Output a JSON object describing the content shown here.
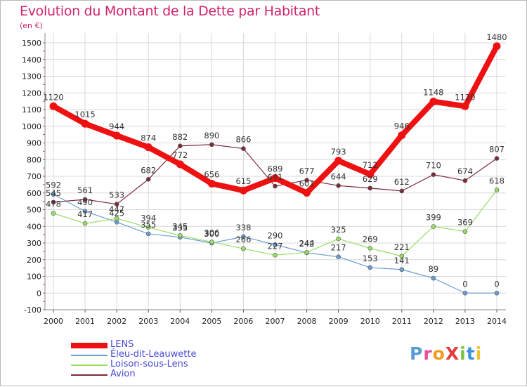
{
  "title": "Evolution du Montant de la Dette par Habitant",
  "unit": "(en €)",
  "logo": {
    "text": "ProXiti",
    "colors": [
      "#5b9bd5",
      "#e84e9a",
      "#f39b1c",
      "#e23d3d",
      "#7ac142",
      "#3d8fe2",
      "#f2c230"
    ]
  },
  "chart_data": {
    "type": "line",
    "title": "Evolution du Montant de la Dette par Habitant",
    "ylabel": "(en €)",
    "xlabel": "",
    "ylim": [
      -100,
      1500
    ],
    "yticks": [
      -100,
      0,
      100,
      200,
      300,
      400,
      500,
      600,
      700,
      800,
      900,
      1000,
      1100,
      1200,
      1300,
      1400,
      1500
    ],
    "x": [
      "2000",
      "2001",
      "2002",
      "2003",
      "2004",
      "2005",
      "2006",
      "2007",
      "2008",
      "2009",
      "2010",
      "2011",
      "2012",
      "2013",
      "2014"
    ],
    "grid": true,
    "legend_position": "bottom-left",
    "series": [
      {
        "name": "LENS",
        "color": "#ee1111",
        "width": 8,
        "values": [
          1120,
          1015,
          944,
          874,
          772,
          656,
          615,
          689,
          601,
          793,
          712,
          946,
          1148,
          1120,
          1480
        ],
        "labels": [
          "1120",
          "1015",
          "944",
          "874",
          "772",
          "656",
          "615",
          "689",
          "601",
          "793",
          "712",
          "946",
          "1148",
          "1120",
          "1480"
        ]
      },
      {
        "name": "Éleu-dit-Leauwette",
        "color": "#6b9fd0",
        "width": 1.2,
        "values": [
          592,
          490,
          425,
          355,
          335,
          300,
          338,
          290,
          242,
          217,
          153,
          141,
          89,
          0,
          0
        ],
        "labels": [
          "592",
          "490",
          "425",
          "355",
          "335",
          "300",
          "338",
          "290",
          "242",
          "217",
          "153",
          "141",
          "89",
          "0",
          "0"
        ]
      },
      {
        "name": "Loison-sous-Lens",
        "color": "#99dd66",
        "width": 1.2,
        "values": [
          478,
          417,
          447,
          394,
          345,
          306,
          266,
          227,
          244,
          325,
          269,
          221,
          399,
          369,
          618
        ],
        "labels": [
          "478",
          "417",
          "447",
          "394",
          "345",
          "306",
          "266",
          "227",
          "244",
          "325",
          "269",
          "221",
          "399",
          "369",
          "618"
        ]
      },
      {
        "name": "Avion",
        "color": "#7d2a3a",
        "width": 1.2,
        "values": [
          545,
          561,
          533,
          682,
          882,
          890,
          866,
          641,
          677,
          644,
          629,
          612,
          710,
          674,
          807
        ],
        "labels": [
          "545",
          "561",
          "533",
          "682",
          "882",
          "890",
          "866",
          "641",
          "677",
          "644",
          "629",
          "612",
          "710",
          "674",
          "807"
        ]
      }
    ]
  }
}
